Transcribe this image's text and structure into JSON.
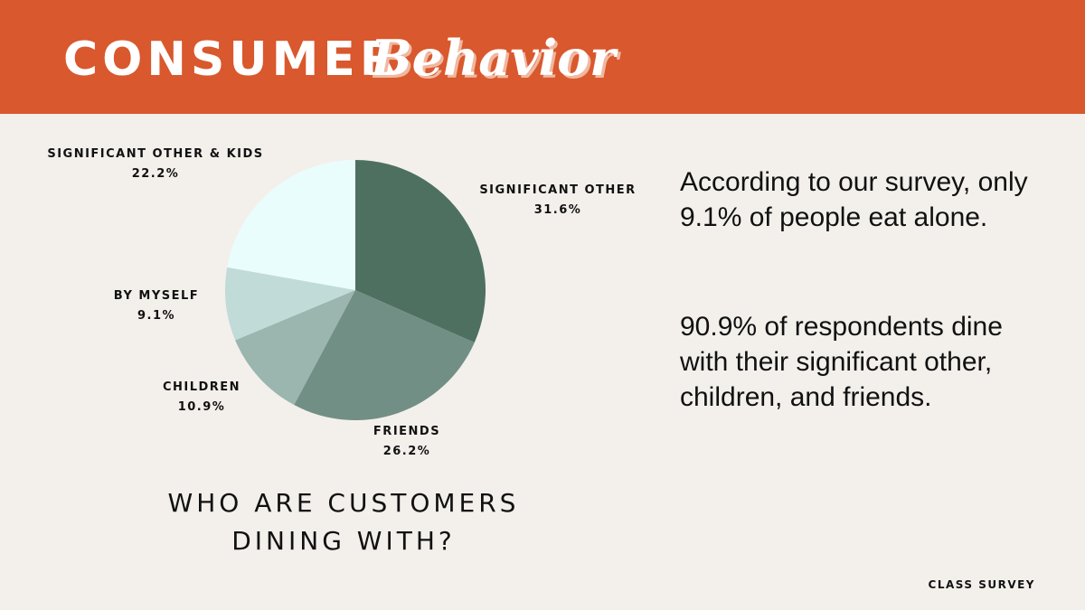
{
  "header": {
    "title_main": "CONSUMER",
    "title_script": "Behavior",
    "banner_color": "#d9582d"
  },
  "chart_data": {
    "type": "pie",
    "title": "WHO ARE CUSTOMERS DINING WITH?",
    "slices": [
      {
        "label": "SIGNIFICANT OTHER",
        "value": 31.6,
        "value_label": "31.6%",
        "color": "#4e7060"
      },
      {
        "label": "FRIENDS",
        "value": 26.2,
        "value_label": "26.2%",
        "color": "#728f85"
      },
      {
        "label": "CHILDREN",
        "value": 10.9,
        "value_label": "10.9%",
        "color": "#9bb5af"
      },
      {
        "label": "BY MYSELF",
        "value": 9.1,
        "value_label": "9.1%",
        "color": "#c1dbd8"
      },
      {
        "label": "SIGNIFICANT OTHER & KIDS",
        "value": 22.2,
        "value_label": "22.2%",
        "color": "#eafdfd"
      }
    ]
  },
  "caption": {
    "line1": "WHO ARE CUSTOMERS",
    "line2": "DINING WITH?"
  },
  "body": {
    "paragraph1": "According to our survey, only 9.1% of people eat alone.",
    "paragraph2": "90.9% of respondents dine with their significant other, children, and friends."
  },
  "footer": {
    "label": "CLASS SURVEY"
  }
}
